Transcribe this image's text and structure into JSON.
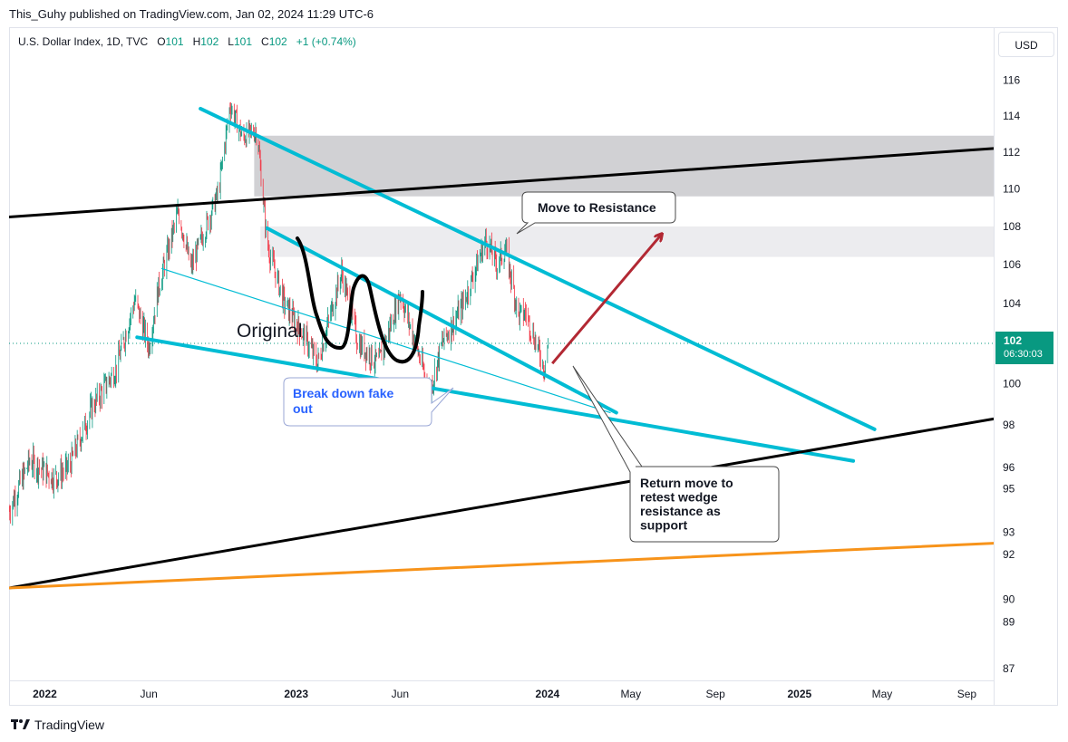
{
  "header": {
    "caption": "This_Guhy published on TradingView.com, Jan 02, 2024 11:29 UTC-6"
  },
  "legend": {
    "symbol": "U.S. Dollar Index, 1D, TVC",
    "o_label": "O",
    "o_value": "101",
    "h_label": "H",
    "h_value": "102",
    "l_label": "L",
    "l_value": "101",
    "c_label": "C",
    "c_value": "102",
    "change": "+1 (+0.74%)"
  },
  "currency_label": "USD",
  "price_badge": {
    "price": "102",
    "countdown": "06:30:03"
  },
  "footer": {
    "brand": "TradingView"
  },
  "colors": {
    "wedge": "#00bcd4",
    "trend": "#000000",
    "orange": "#f7931a",
    "arrow": "#b22833",
    "zone": "#d1d1d4",
    "zone_light": "#ececef",
    "up": "#089981",
    "down": "#f23645",
    "blue_text": "#2962ff"
  },
  "chart_data": {
    "type": "candlestick",
    "title": "U.S. Dollar Index, 1D, TVC",
    "y_scale": "log",
    "ylim": [
      86.5,
      119
    ],
    "y_ticks": [
      87,
      89,
      90,
      92,
      93,
      95,
      96,
      98,
      100,
      102,
      104,
      106,
      108,
      110,
      112,
      114,
      116
    ],
    "x_ticks": [
      "2022",
      "Jun",
      "2023",
      "Jun",
      "2024",
      "May",
      "Sep",
      "2025",
      "May",
      "Sep"
    ],
    "x_tick_dates": [
      "2022-01-01",
      "2022-06-01",
      "2023-01-01",
      "2023-06-01",
      "2024-01-01",
      "2024-05-01",
      "2024-09-01",
      "2025-01-01",
      "2025-05-01",
      "2025-09-01"
    ],
    "x_range": [
      "2021-11-10",
      "2025-10-10"
    ],
    "last_price": 102,
    "price_path": [
      {
        "date": "2021-11-10",
        "value": 94.0
      },
      {
        "date": "2021-12-10",
        "value": 96.3
      },
      {
        "date": "2022-01-15",
        "value": 95.5
      },
      {
        "date": "2022-02-05",
        "value": 96.0
      },
      {
        "date": "2022-03-10",
        "value": 98.8
      },
      {
        "date": "2022-04-15",
        "value": 100.8
      },
      {
        "date": "2022-05-12",
        "value": 104.2
      },
      {
        "date": "2022-06-01",
        "value": 101.8
      },
      {
        "date": "2022-06-15",
        "value": 104.8
      },
      {
        "date": "2022-07-14",
        "value": 108.8
      },
      {
        "date": "2022-08-01",
        "value": 105.8
      },
      {
        "date": "2022-09-10",
        "value": 109.8
      },
      {
        "date": "2022-09-27",
        "value": 114.6
      },
      {
        "date": "2022-10-15",
        "value": 112.8
      },
      {
        "date": "2022-11-05",
        "value": 113.2
      },
      {
        "date": "2022-11-20",
        "value": 107.0
      },
      {
        "date": "2022-12-15",
        "value": 104.0
      },
      {
        "date": "2023-01-15",
        "value": 102.2
      },
      {
        "date": "2023-02-01",
        "value": 101.0
      },
      {
        "date": "2023-03-08",
        "value": 105.6
      },
      {
        "date": "2023-04-01",
        "value": 102.0
      },
      {
        "date": "2023-05-01",
        "value": 101.0
      },
      {
        "date": "2023-06-01",
        "value": 104.5
      },
      {
        "date": "2023-07-14",
        "value": 99.6
      },
      {
        "date": "2023-08-01",
        "value": 102.0
      },
      {
        "date": "2023-09-01",
        "value": 104.0
      },
      {
        "date": "2023-10-03",
        "value": 107.3
      },
      {
        "date": "2023-10-20",
        "value": 106.0
      },
      {
        "date": "2023-11-01",
        "value": 106.8
      },
      {
        "date": "2023-11-20",
        "value": 103.4
      },
      {
        "date": "2023-12-01",
        "value": 103.5
      },
      {
        "date": "2023-12-27",
        "value": 100.8
      },
      {
        "date": "2024-01-02",
        "value": 102.0
      }
    ],
    "zones": [
      {
        "name": "resistance-zone-upper",
        "from": "2022-11-01",
        "to": "2025-10-10",
        "low": 109.6,
        "high": 112.9
      },
      {
        "name": "resistance-zone-lower",
        "from": "2022-11-10",
        "to": "2025-10-10",
        "low": 106.4,
        "high": 108.0
      }
    ],
    "lines": [
      {
        "name": "upper-wedge-line",
        "kind": "wedge",
        "from": {
          "date": "2022-08-15",
          "value": 114.4
        },
        "to": {
          "date": "2025-04-20",
          "value": 97.8
        }
      },
      {
        "name": "inner-wedge-line",
        "kind": "wedge",
        "from": {
          "date": "2022-11-20",
          "value": 107.9
        },
        "to": {
          "date": "2024-04-10",
          "value": 98.6
        }
      },
      {
        "name": "lower-wedge-line",
        "kind": "wedge",
        "from": {
          "date": "2022-05-15",
          "value": 102.3
        },
        "to": {
          "date": "2025-03-20",
          "value": 96.3
        }
      },
      {
        "name": "thin-wedge-line",
        "kind": "thin",
        "from": {
          "date": "2022-06-20",
          "value": 105.8
        },
        "to": {
          "date": "2024-04-01",
          "value": 98.6
        }
      },
      {
        "name": "upper-trendline",
        "kind": "trend",
        "from": {
          "date": "2021-11-10",
          "value": 108.5
        },
        "to": {
          "date": "2025-10-10",
          "value": 112.2
        }
      },
      {
        "name": "lower-trendline",
        "kind": "trend",
        "from": {
          "date": "2021-11-10",
          "value": 90.5
        },
        "to": {
          "date": "2025-10-10",
          "value": 98.3
        }
      },
      {
        "name": "orange-trendline",
        "kind": "orange",
        "from": {
          "date": "2021-11-10",
          "value": 90.5
        },
        "to": {
          "date": "2025-10-10",
          "value": 92.5
        }
      }
    ],
    "arrow": {
      "name": "forecast-arrow",
      "from": {
        "date": "2024-01-08",
        "value": 101.0
      },
      "to": {
        "date": "2024-06-15",
        "value": 107.6
      }
    },
    "annotations": {
      "original": "Original",
      "move_to_resistance": "Move to Resistance",
      "break_down_fake_out": "Break down fake out",
      "return_move": "Return move to retest wedge resistance as support"
    }
  }
}
